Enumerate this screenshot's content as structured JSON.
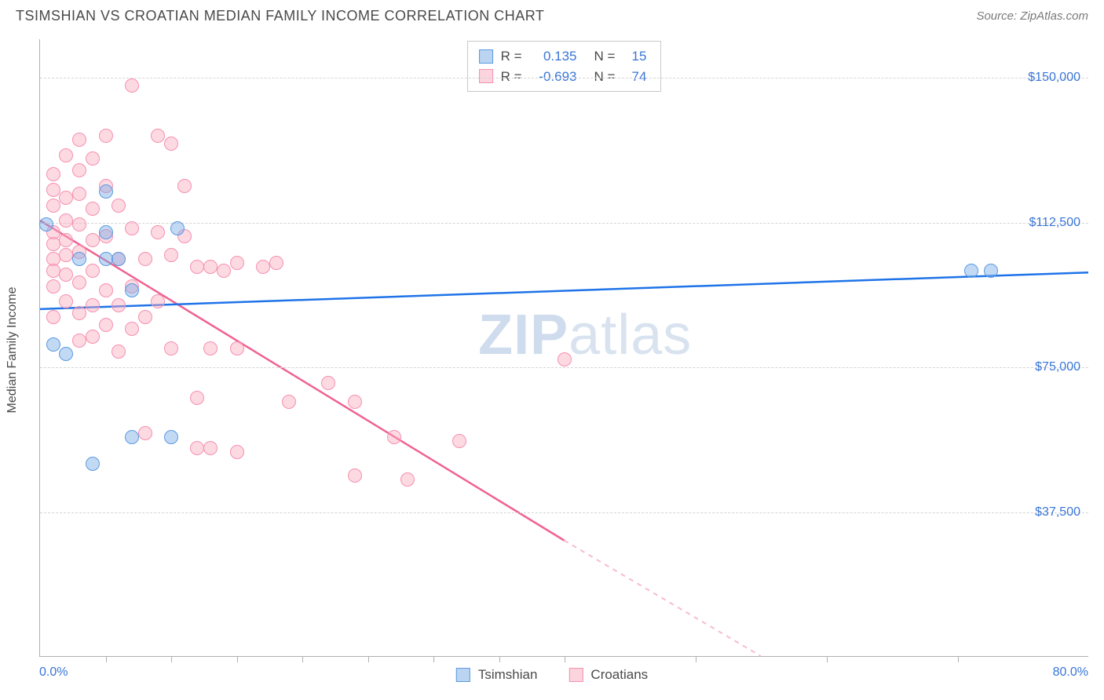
{
  "header": {
    "title": "TSIMSHIAN VS CROATIAN MEDIAN FAMILY INCOME CORRELATION CHART",
    "source": "Source: ZipAtlas.com"
  },
  "chart": {
    "type": "scatter",
    "yaxis_title": "Median Family Income",
    "ylim": [
      0,
      160000
    ],
    "yticks": [
      {
        "value": 37500,
        "label": "$37,500"
      },
      {
        "value": 75000,
        "label": "$75,000"
      },
      {
        "value": 112500,
        "label": "$112,500"
      },
      {
        "value": 150000,
        "label": "$150,000"
      }
    ],
    "xlim": [
      0,
      80
    ],
    "xaxis_label_left": "0.0%",
    "xaxis_label_right": "80.0%",
    "xticks": [
      5,
      10,
      15,
      20,
      25,
      30,
      35,
      40,
      50,
      60,
      70
    ],
    "background_color": "#ffffff",
    "grid_color": "#d5d5d5",
    "axis_color": "#b0b0b0",
    "marker_radius": 9,
    "watermark": {
      "bold": "ZIP",
      "rest": "atlas"
    },
    "series": {
      "tsimshian": {
        "label": "Tsimshian",
        "color_fill": "rgba(120,170,230,0.45)",
        "color_stroke": "#5a9ae0",
        "r_value": "0.135",
        "n_value": "15",
        "trend": {
          "x1": 0,
          "y1": 90000,
          "x2": 80,
          "y2": 99500,
          "color": "#1e73e8",
          "width": 2.5,
          "dash": "none"
        },
        "points": [
          {
            "x": 0.5,
            "y": 112000
          },
          {
            "x": 5,
            "y": 120500
          },
          {
            "x": 5,
            "y": 110000
          },
          {
            "x": 5,
            "y": 103000
          },
          {
            "x": 3,
            "y": 103000
          },
          {
            "x": 6,
            "y": 103000
          },
          {
            "x": 1,
            "y": 81000
          },
          {
            "x": 2,
            "y": 78500
          },
          {
            "x": 10.5,
            "y": 111000
          },
          {
            "x": 7,
            "y": 57000
          },
          {
            "x": 10,
            "y": 57000
          },
          {
            "x": 4,
            "y": 50000
          },
          {
            "x": 71,
            "y": 100000
          },
          {
            "x": 72.5,
            "y": 100000
          },
          {
            "x": 7,
            "y": 95000
          }
        ]
      },
      "croatians": {
        "label": "Croatians",
        "color_fill": "rgba(250,170,190,0.45)",
        "color_stroke": "#f590b0",
        "r_value": "-0.693",
        "n_value": "74",
        "trend_solid": {
          "x1": 0,
          "y1": 113000,
          "x2": 40,
          "y2": 30000,
          "color": "#f06292",
          "width": 2.5
        },
        "trend_dash": {
          "x1": 40,
          "y1": 30000,
          "x2": 55,
          "y2": 0,
          "color": "#f8bbd0",
          "width": 2
        },
        "points": [
          {
            "x": 1,
            "y": 125000
          },
          {
            "x": 1,
            "y": 121000
          },
          {
            "x": 1,
            "y": 117000
          },
          {
            "x": 1,
            "y": 110000
          },
          {
            "x": 1,
            "y": 107000
          },
          {
            "x": 1,
            "y": 103000
          },
          {
            "x": 1,
            "y": 100000
          },
          {
            "x": 1,
            "y": 96000
          },
          {
            "x": 1,
            "y": 88000
          },
          {
            "x": 2,
            "y": 130000
          },
          {
            "x": 2,
            "y": 119000
          },
          {
            "x": 2,
            "y": 113000
          },
          {
            "x": 2,
            "y": 108000
          },
          {
            "x": 2,
            "y": 104000
          },
          {
            "x": 2,
            "y": 99000
          },
          {
            "x": 2,
            "y": 92000
          },
          {
            "x": 3,
            "y": 134000
          },
          {
            "x": 3,
            "y": 126000
          },
          {
            "x": 3,
            "y": 120000
          },
          {
            "x": 3,
            "y": 112000
          },
          {
            "x": 3,
            "y": 105000
          },
          {
            "x": 3,
            "y": 97000
          },
          {
            "x": 3,
            "y": 89000
          },
          {
            "x": 3,
            "y": 82000
          },
          {
            "x": 4,
            "y": 129000
          },
          {
            "x": 4,
            "y": 116000
          },
          {
            "x": 4,
            "y": 108000
          },
          {
            "x": 4,
            "y": 100000
          },
          {
            "x": 4,
            "y": 91000
          },
          {
            "x": 4,
            "y": 83000
          },
          {
            "x": 5,
            "y": 135000
          },
          {
            "x": 5,
            "y": 122000
          },
          {
            "x": 5,
            "y": 109000
          },
          {
            "x": 5,
            "y": 95000
          },
          {
            "x": 5,
            "y": 86000
          },
          {
            "x": 6,
            "y": 117000
          },
          {
            "x": 6,
            "y": 103000
          },
          {
            "x": 6,
            "y": 91000
          },
          {
            "x": 6,
            "y": 79000
          },
          {
            "x": 7,
            "y": 148000
          },
          {
            "x": 7,
            "y": 111000
          },
          {
            "x": 7,
            "y": 96000
          },
          {
            "x": 7,
            "y": 85000
          },
          {
            "x": 8,
            "y": 103000
          },
          {
            "x": 8,
            "y": 88000
          },
          {
            "x": 8,
            "y": 58000
          },
          {
            "x": 9,
            "y": 135000
          },
          {
            "x": 9,
            "y": 110000
          },
          {
            "x": 9,
            "y": 92000
          },
          {
            "x": 10,
            "y": 133000
          },
          {
            "x": 10,
            "y": 104000
          },
          {
            "x": 10,
            "y": 80000
          },
          {
            "x": 11,
            "y": 122000
          },
          {
            "x": 11,
            "y": 109000
          },
          {
            "x": 12,
            "y": 101000
          },
          {
            "x": 12,
            "y": 67000
          },
          {
            "x": 12,
            "y": 54000
          },
          {
            "x": 13,
            "y": 101000
          },
          {
            "x": 13,
            "y": 80000
          },
          {
            "x": 13,
            "y": 54000
          },
          {
            "x": 14,
            "y": 100000
          },
          {
            "x": 15,
            "y": 102000
          },
          {
            "x": 15,
            "y": 80000
          },
          {
            "x": 15,
            "y": 53000
          },
          {
            "x": 17,
            "y": 101000
          },
          {
            "x": 18,
            "y": 102000
          },
          {
            "x": 19,
            "y": 66000
          },
          {
            "x": 22,
            "y": 71000
          },
          {
            "x": 24,
            "y": 66000
          },
          {
            "x": 24,
            "y": 47000
          },
          {
            "x": 27,
            "y": 57000
          },
          {
            "x": 28,
            "y": 46000
          },
          {
            "x": 32,
            "y": 56000
          },
          {
            "x": 40,
            "y": 77000
          }
        ]
      }
    }
  },
  "stats_box": {
    "rows": [
      {
        "swatch": "blue",
        "r": "0.135",
        "n": "15"
      },
      {
        "swatch": "pink",
        "r": "-0.693",
        "n": "74"
      }
    ]
  },
  "legend": [
    {
      "swatch": "blue",
      "label": "Tsimshian"
    },
    {
      "swatch": "pink",
      "label": "Croatians"
    }
  ],
  "colors": {
    "text_primary": "#4a4a4a",
    "text_secondary": "#7a7a7a",
    "accent_blue": "#3875d7"
  }
}
